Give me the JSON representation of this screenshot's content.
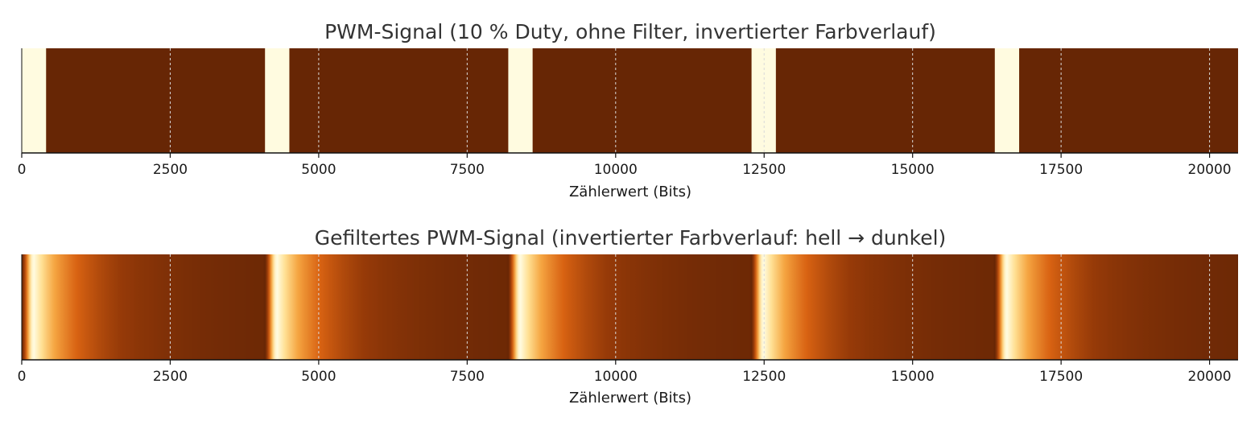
{
  "chart_data": [
    {
      "type": "heatmap",
      "title": "PWM-Signal (10 % Duty, ohne Filter, invertierter Farbverlauf)",
      "xlabel": "Zählerwert (Bits)",
      "ylabel": "",
      "xlim": [
        0,
        20480
      ],
      "xticks": [
        0,
        2500,
        5000,
        7500,
        10000,
        12500,
        15000,
        17500,
        20000
      ],
      "grid": true,
      "period": 4096,
      "duty": 0.1,
      "filtered": false,
      "pulses": [
        {
          "start": 0,
          "end": 410
        },
        {
          "start": 4096,
          "end": 4506
        },
        {
          "start": 8192,
          "end": 8602
        },
        {
          "start": 12288,
          "end": 12698
        },
        {
          "start": 16384,
          "end": 16794
        }
      ],
      "colors": {
        "high": "#fffbe0",
        "low": "#672605"
      }
    },
    {
      "type": "heatmap",
      "title": "Gefiltertes PWM-Signal (invertierter Farbverlauf: hell → dunkel)",
      "xlabel": "Zählerwert (Bits)",
      "ylabel": "",
      "xlim": [
        0,
        20480
      ],
      "xticks": [
        0,
        2500,
        5000,
        7500,
        10000,
        12500,
        15000,
        17500,
        20000
      ],
      "grid": true,
      "period": 4096,
      "duty": 0.1,
      "filtered": true,
      "colors": {
        "high": "#fffbe0",
        "low": "#672605"
      }
    }
  ]
}
